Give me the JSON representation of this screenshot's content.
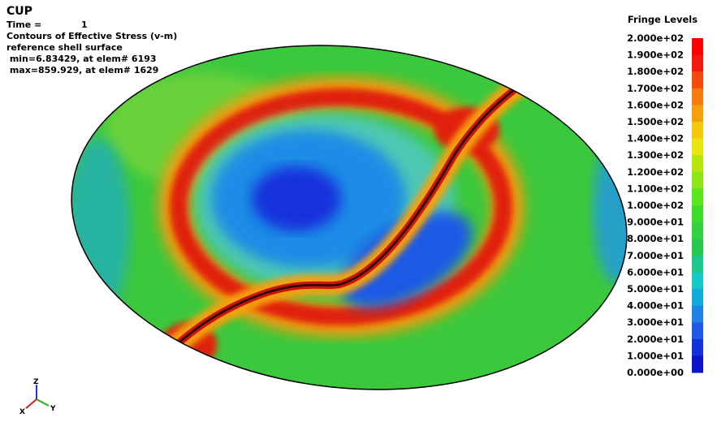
{
  "header": {
    "title": "CUP",
    "time_label": "Time =",
    "time_value": "1",
    "lines": [
      "Contours of Effective Stress (v-m)",
      "reference shell surface",
      " min=6.83429, at elem# 6193",
      " max=859.929, at elem# 1629"
    ]
  },
  "legend": {
    "title": "Fringe Levels",
    "levels": [
      "2.000e+02",
      "1.900e+02",
      "1.800e+02",
      "1.700e+02",
      "1.600e+02",
      "1.500e+02",
      "1.400e+02",
      "1.300e+02",
      "1.200e+02",
      "1.100e+02",
      "1.000e+02",
      "9.000e+01",
      "8.000e+01",
      "7.000e+01",
      "6.000e+01",
      "5.000e+01",
      "4.000e+01",
      "3.000e+01",
      "2.000e+01",
      "1.000e+01",
      "0.000e+00"
    ],
    "colors": [
      "#ff0000",
      "#f21a0a",
      "#f54a0a",
      "#f57a0a",
      "#f5a00a",
      "#f5c80a",
      "#e8e60a",
      "#b4e60a",
      "#8ce614",
      "#5ae61e",
      "#3cdc28",
      "#32d23c",
      "#28c850",
      "#1ec88c",
      "#14c8c8",
      "#14aadc",
      "#1e82e6",
      "#1e5ae6",
      "#1432dc",
      "#0a14c8"
    ]
  },
  "triad": {
    "z": "Z",
    "y": "Y",
    "x": "X"
  }
}
